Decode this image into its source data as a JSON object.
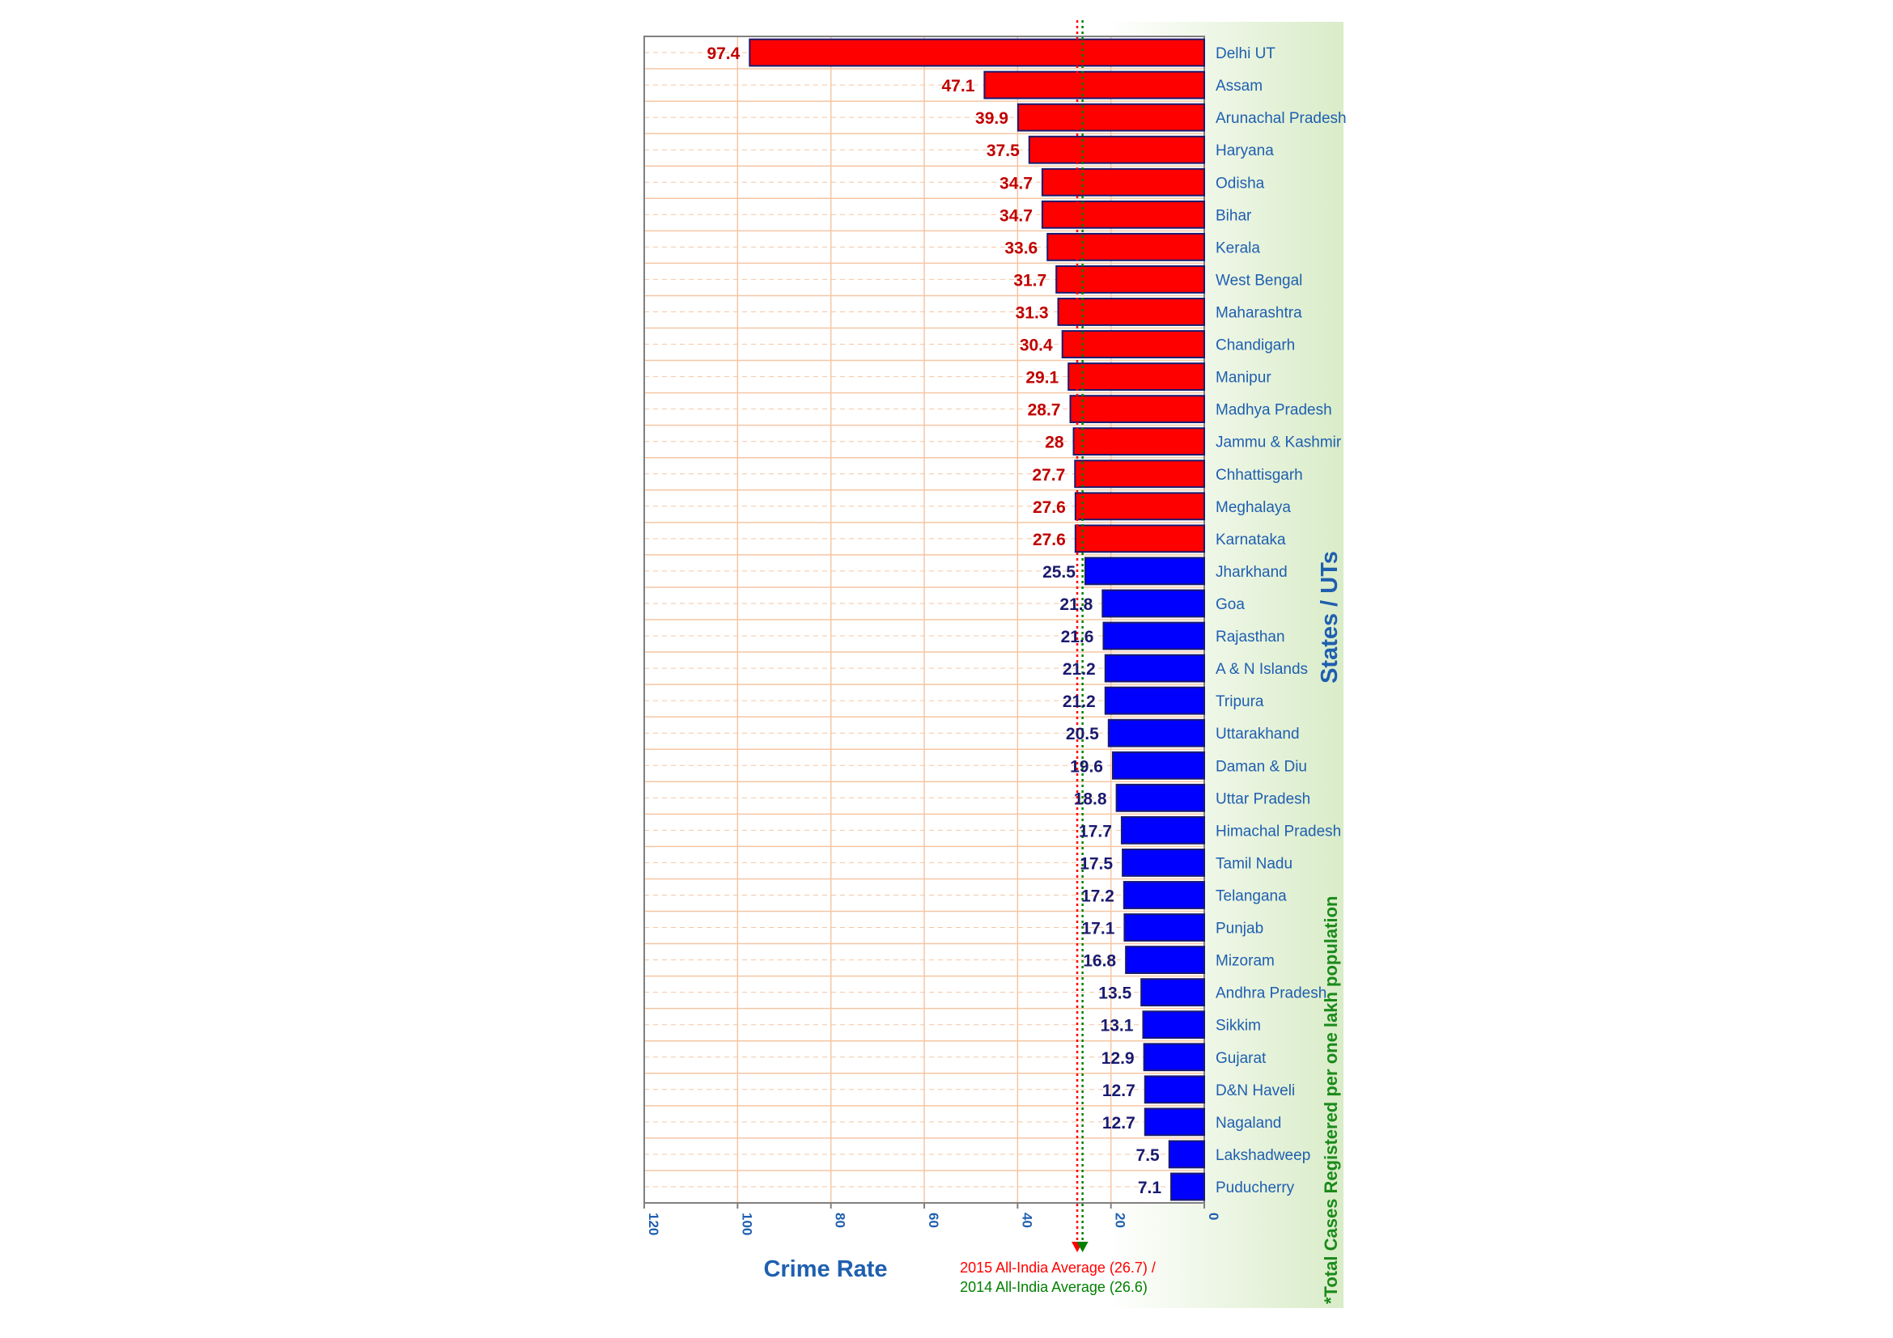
{
  "chart_data": {
    "type": "bar",
    "orientation": "horizontal",
    "xlabel": "Crime Rate",
    "ylabel": "States / UTs",
    "side_note": "*Total Cases Registered per one lakh population",
    "xlim": [
      0,
      120
    ],
    "x_reversed": true,
    "xticks": [
      120,
      100,
      80,
      60,
      40,
      20,
      0
    ],
    "grid": true,
    "colors": {
      "above_average": "#ff0000",
      "below_average": "#0000ff",
      "bar_border": "#1a1a6e",
      "value_above": "#c00000",
      "value_below": "#1a1a6e"
    },
    "categories": [
      "Delhi UT",
      "Assam",
      "Arunachal Pradesh",
      "Haryana",
      "Odisha",
      "Bihar",
      "Kerala",
      "West Bengal",
      "Maharashtra",
      "Chandigarh",
      "Manipur",
      "Madhya Pradesh",
      "Jammu & Kashmir",
      "Chhattisgarh",
      "Meghalaya",
      "Karnataka",
      "Jharkhand",
      "Goa",
      "Rajasthan",
      "A & N Islands",
      "Tripura",
      "Uttarakhand",
      "Daman & Diu",
      "Uttar Pradesh",
      "Himachal Pradesh",
      "Tamil Nadu",
      "Telangana",
      "Punjab",
      "Mizoram",
      "Andhra Pradesh",
      "Sikkim",
      "Gujarat",
      "D&N Haveli",
      "Nagaland",
      "Lakshadweep",
      "Puducherry"
    ],
    "values": [
      97.4,
      47.1,
      39.9,
      37.5,
      34.7,
      34.7,
      33.6,
      31.7,
      31.3,
      30.4,
      29.1,
      28.7,
      28,
      27.7,
      27.6,
      27.6,
      25.5,
      21.8,
      21.6,
      21.2,
      21.2,
      20.5,
      19.6,
      18.8,
      17.7,
      17.5,
      17.2,
      17.1,
      16.8,
      13.5,
      13.1,
      12.9,
      12.7,
      12.7,
      7.5,
      7.1
    ],
    "value_labels": [
      "97.4",
      "47.1",
      "39.9",
      "37.5",
      "34.7",
      "34.7",
      "33.6",
      "31.7",
      "31.3",
      "30.4",
      "29.1",
      "28.7",
      "28",
      "27.7",
      "27.6",
      "27.6",
      "25.5",
      "21.8",
      "21.6",
      "21.2",
      "21.2",
      "20.5",
      "19.6",
      "18.8",
      "17.7",
      "17.5",
      "17.2",
      "17.1",
      "16.8",
      "13.5",
      "13.1",
      "12.9",
      "12.7",
      "12.7",
      "7.5",
      "7.1"
    ],
    "reference_lines": [
      {
        "label": "2015 All-India  Average (26.7) /",
        "value": 26.7,
        "color": "#ff0000"
      },
      {
        "label": "2014 All-India  Average (26.6)",
        "value": 26.6,
        "color": "#008000"
      }
    ]
  }
}
